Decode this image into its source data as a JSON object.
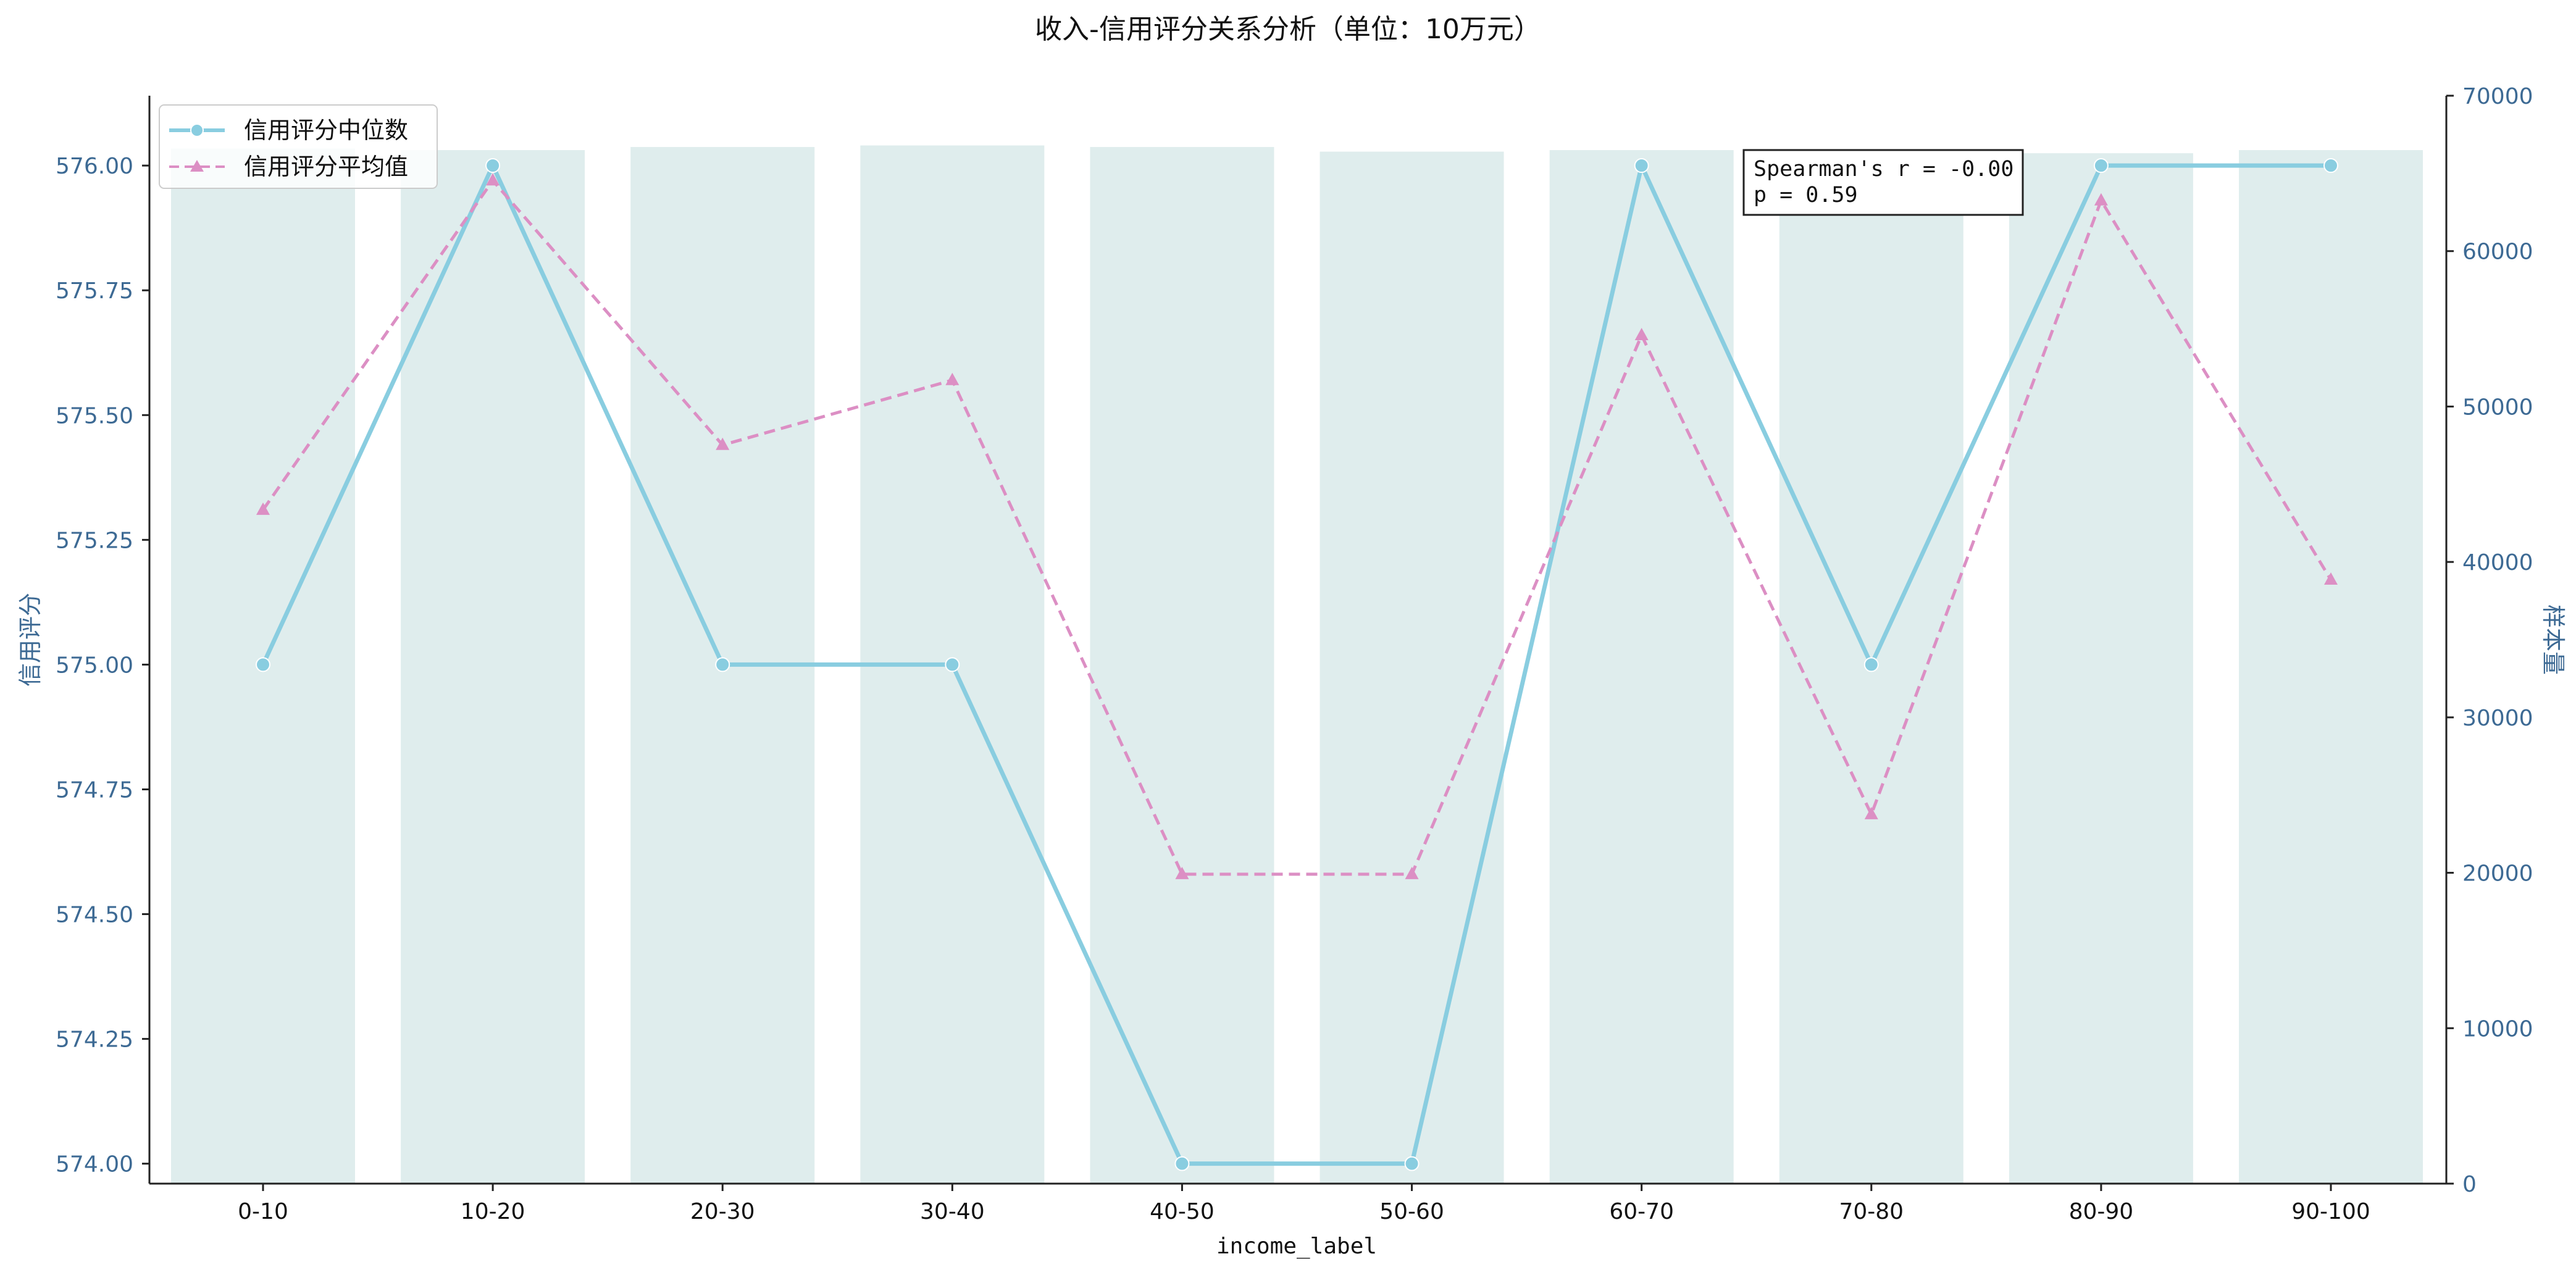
{
  "chart_data": {
    "type": "bar+line",
    "title": "收入-信用评分关系分析（单位：10万元）",
    "xlabel": "income_label",
    "ylabel_left": "信用评分",
    "ylabel_right": "样本量",
    "categories": [
      "0-10",
      "10-20",
      "20-30",
      "30-40",
      "40-50",
      "50-60",
      "60-70",
      "70-80",
      "80-90",
      "90-100"
    ],
    "y_left": {
      "lim": [
        573.96,
        576.14
      ],
      "ticks": [
        574.0,
        574.25,
        574.5,
        574.75,
        575.0,
        575.25,
        575.5,
        575.75,
        576.0
      ],
      "tick_labels": [
        "574.00",
        "574.25",
        "574.50",
        "574.75",
        "575.00",
        "575.25",
        "575.50",
        "575.75",
        "576.00"
      ]
    },
    "y_right": {
      "lim": [
        0,
        70000
      ],
      "ticks": [
        0,
        10000,
        20000,
        30000,
        40000,
        50000,
        60000,
        70000
      ],
      "tick_labels": [
        "0",
        "10000",
        "20000",
        "30000",
        "40000",
        "50000",
        "60000",
        "70000"
      ]
    },
    "bars": {
      "name": "样本量",
      "axis": "right",
      "color": "#dfeded",
      "values": [
        66600,
        66500,
        66700,
        66800,
        66700,
        66400,
        66500,
        66200,
        66300,
        66500
      ]
    },
    "series": [
      {
        "name": "信用评分中位数",
        "axis": "left",
        "color": "#89cde0",
        "style": "solid",
        "marker": "circle",
        "values": [
          575.0,
          576.0,
          575.0,
          575.0,
          574.0,
          574.0,
          576.0,
          575.0,
          576.0,
          576.0
        ]
      },
      {
        "name": "信用评分平均值",
        "axis": "left",
        "color": "#dc8fc4",
        "style": "dashed",
        "marker": "triangle",
        "values": [
          575.31,
          575.97,
          575.44,
          575.57,
          574.58,
          574.58,
          575.66,
          574.7,
          575.93,
          575.17
        ]
      }
    ],
    "annotation": {
      "line1": "Spearman's r = -0.00",
      "line2": "p = 0.59"
    },
    "legend": {
      "placement": "top-left"
    },
    "grid": false,
    "colors": {
      "left_axis_text": "#3d6a94",
      "right_axis_text": "#3d6a94",
      "axis_line": "#222222"
    }
  }
}
